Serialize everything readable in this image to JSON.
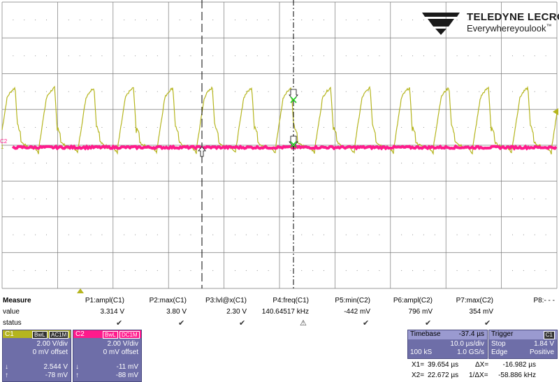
{
  "brand": {
    "name": "TELEDYNE LECROY",
    "tagline": "Everywhereyoulook",
    "tm": "™"
  },
  "colors": {
    "ch1": "#b5b51e",
    "ch2": "#ff1a8c",
    "grid": "#7a7a7a",
    "panel": "#6e6ea8",
    "cursor2_marker": "#22cc22"
  },
  "channel_markers": {
    "ch1": "1",
    "ch2": "C2"
  },
  "measure": {
    "title": "Measure",
    "row_labels": {
      "value": "value",
      "status": "status"
    },
    "params": [
      {
        "name": "P1:ampl(C1)",
        "value": "3.314 V",
        "status": "check"
      },
      {
        "name": "P2:max(C1)",
        "value": "3.80 V",
        "status": "check"
      },
      {
        "name": "P3:lvl@x(C1)",
        "value": "2.30 V",
        "status": "check"
      },
      {
        "name": "P4:freq(C1)",
        "value": "140.64517 kHz",
        "status": "warning"
      },
      {
        "name": "P5:min(C2)",
        "value": "-442 mV",
        "status": "check"
      },
      {
        "name": "P6:ampl(C2)",
        "value": "796 mV",
        "status": "check"
      },
      {
        "name": "P7:max(C2)",
        "value": "354 mV",
        "status": "check"
      },
      {
        "name": "P8:- - -",
        "value": "",
        "status": ""
      }
    ],
    "status_glyphs": {
      "check": "✔",
      "warning": "⚠"
    }
  },
  "channels": [
    {
      "name": "C1",
      "tags": [
        "BwL",
        "AC1M"
      ],
      "vdiv": "2.00 V/div",
      "offset": "0 mV offset",
      "cursor_down": "↓",
      "cursor_up": "↑",
      "val1": "2.544 V",
      "val2": "-78 mV"
    },
    {
      "name": "C2",
      "tags": [
        "BwL",
        "DC1M"
      ],
      "vdiv": "2.00 V/div",
      "offset": "0 mV offset",
      "cursor_down": "↓",
      "cursor_up": "↑",
      "val1": "-11 mV",
      "val2": "-88 mV"
    }
  ],
  "timebase": {
    "title": "Timebase",
    "delay": "-37.4 µs",
    "tdiv": "10.0 µs/div",
    "samples": "100 kS",
    "rate": "1.0 GS/s"
  },
  "trigger": {
    "title": "Trigger",
    "source": "C1",
    "mode": "Stop",
    "level": "1.84 V",
    "type": "Edge",
    "slope": "Positive"
  },
  "cursors": {
    "x1_label": "X1=",
    "x1": "39.654 µs",
    "dx_label": "ΔX=",
    "dx": "-16.982 µs",
    "x2_label": "X2=",
    "x2": "22.672 µs",
    "inv_label": "1/ΔX=",
    "inv": "-58.886 kHz"
  },
  "waveform": {
    "ch1_period_div": 0.711,
    "ch1_high_v": 3.3,
    "ch1_low_v": -0.05,
    "ch2_level_v": -0.04
  }
}
